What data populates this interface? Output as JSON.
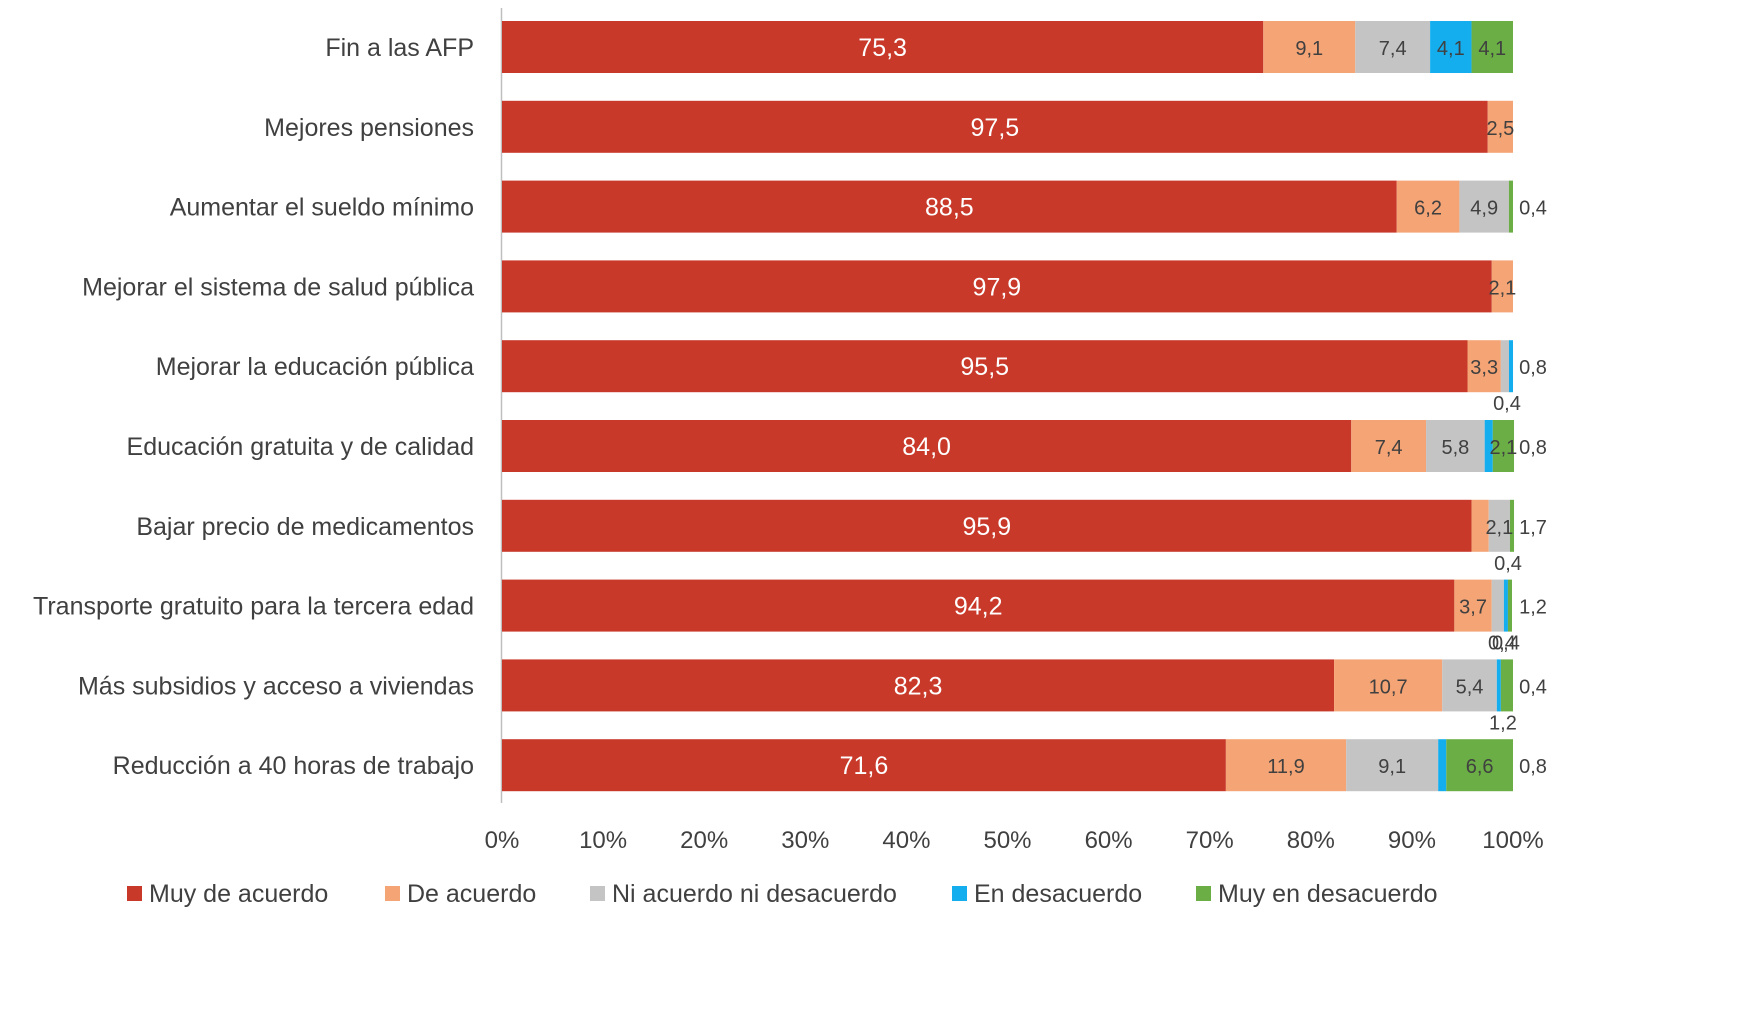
{
  "chart_data": {
    "type": "bar",
    "orientation": "horizontal",
    "stacked": "percent",
    "categories": [
      "Fin a las AFP",
      "Mejores pensiones",
      "Aumentar el sueldo mínimo",
      "Mejorar el sistema de salud pública",
      "Mejorar la educación pública",
      "Educación gratuita y de calidad",
      "Bajar precio de medicamentos",
      "Transporte gratuito para la tercera edad",
      "Más subsidios y acceso a viviendas",
      "Reducción a 40 horas de trabajo"
    ],
    "series": [
      {
        "name": "Muy de acuerdo",
        "color": "#C8392A",
        "values": [
          75.3,
          97.5,
          88.5,
          97.9,
          95.5,
          84.0,
          95.9,
          94.2,
          82.3,
          71.6
        ]
      },
      {
        "name": "De acuerdo",
        "color": "#F4A475",
        "values": [
          9.1,
          2.5,
          6.2,
          2.1,
          3.3,
          7.4,
          1.7,
          3.7,
          10.7,
          11.9
        ]
      },
      {
        "name": "Ni acuerdo ni desacuerdo",
        "color": "#C4C4C4",
        "values": [
          7.4,
          0,
          4.9,
          0,
          0.8,
          5.8,
          2.1,
          1.2,
          5.4,
          9.1
        ]
      },
      {
        "name": "En desacuerdo",
        "color": "#14AEEF",
        "values": [
          4.1,
          0,
          0,
          0,
          0.4,
          0.8,
          0,
          0.4,
          0.4,
          0.8
        ]
      },
      {
        "name": "Muy en desacuerdo",
        "color": "#6AAE45",
        "values": [
          4.1,
          0,
          0.4,
          0,
          0,
          2.1,
          0.4,
          0.4,
          1.2,
          6.6
        ]
      }
    ],
    "x_ticks": [
      "0%",
      "10%",
      "20%",
      "30%",
      "40%",
      "50%",
      "60%",
      "70%",
      "80%",
      "90%",
      "100%"
    ],
    "xlim": [
      0,
      100
    ],
    "grid": false,
    "legend": "bottom"
  }
}
